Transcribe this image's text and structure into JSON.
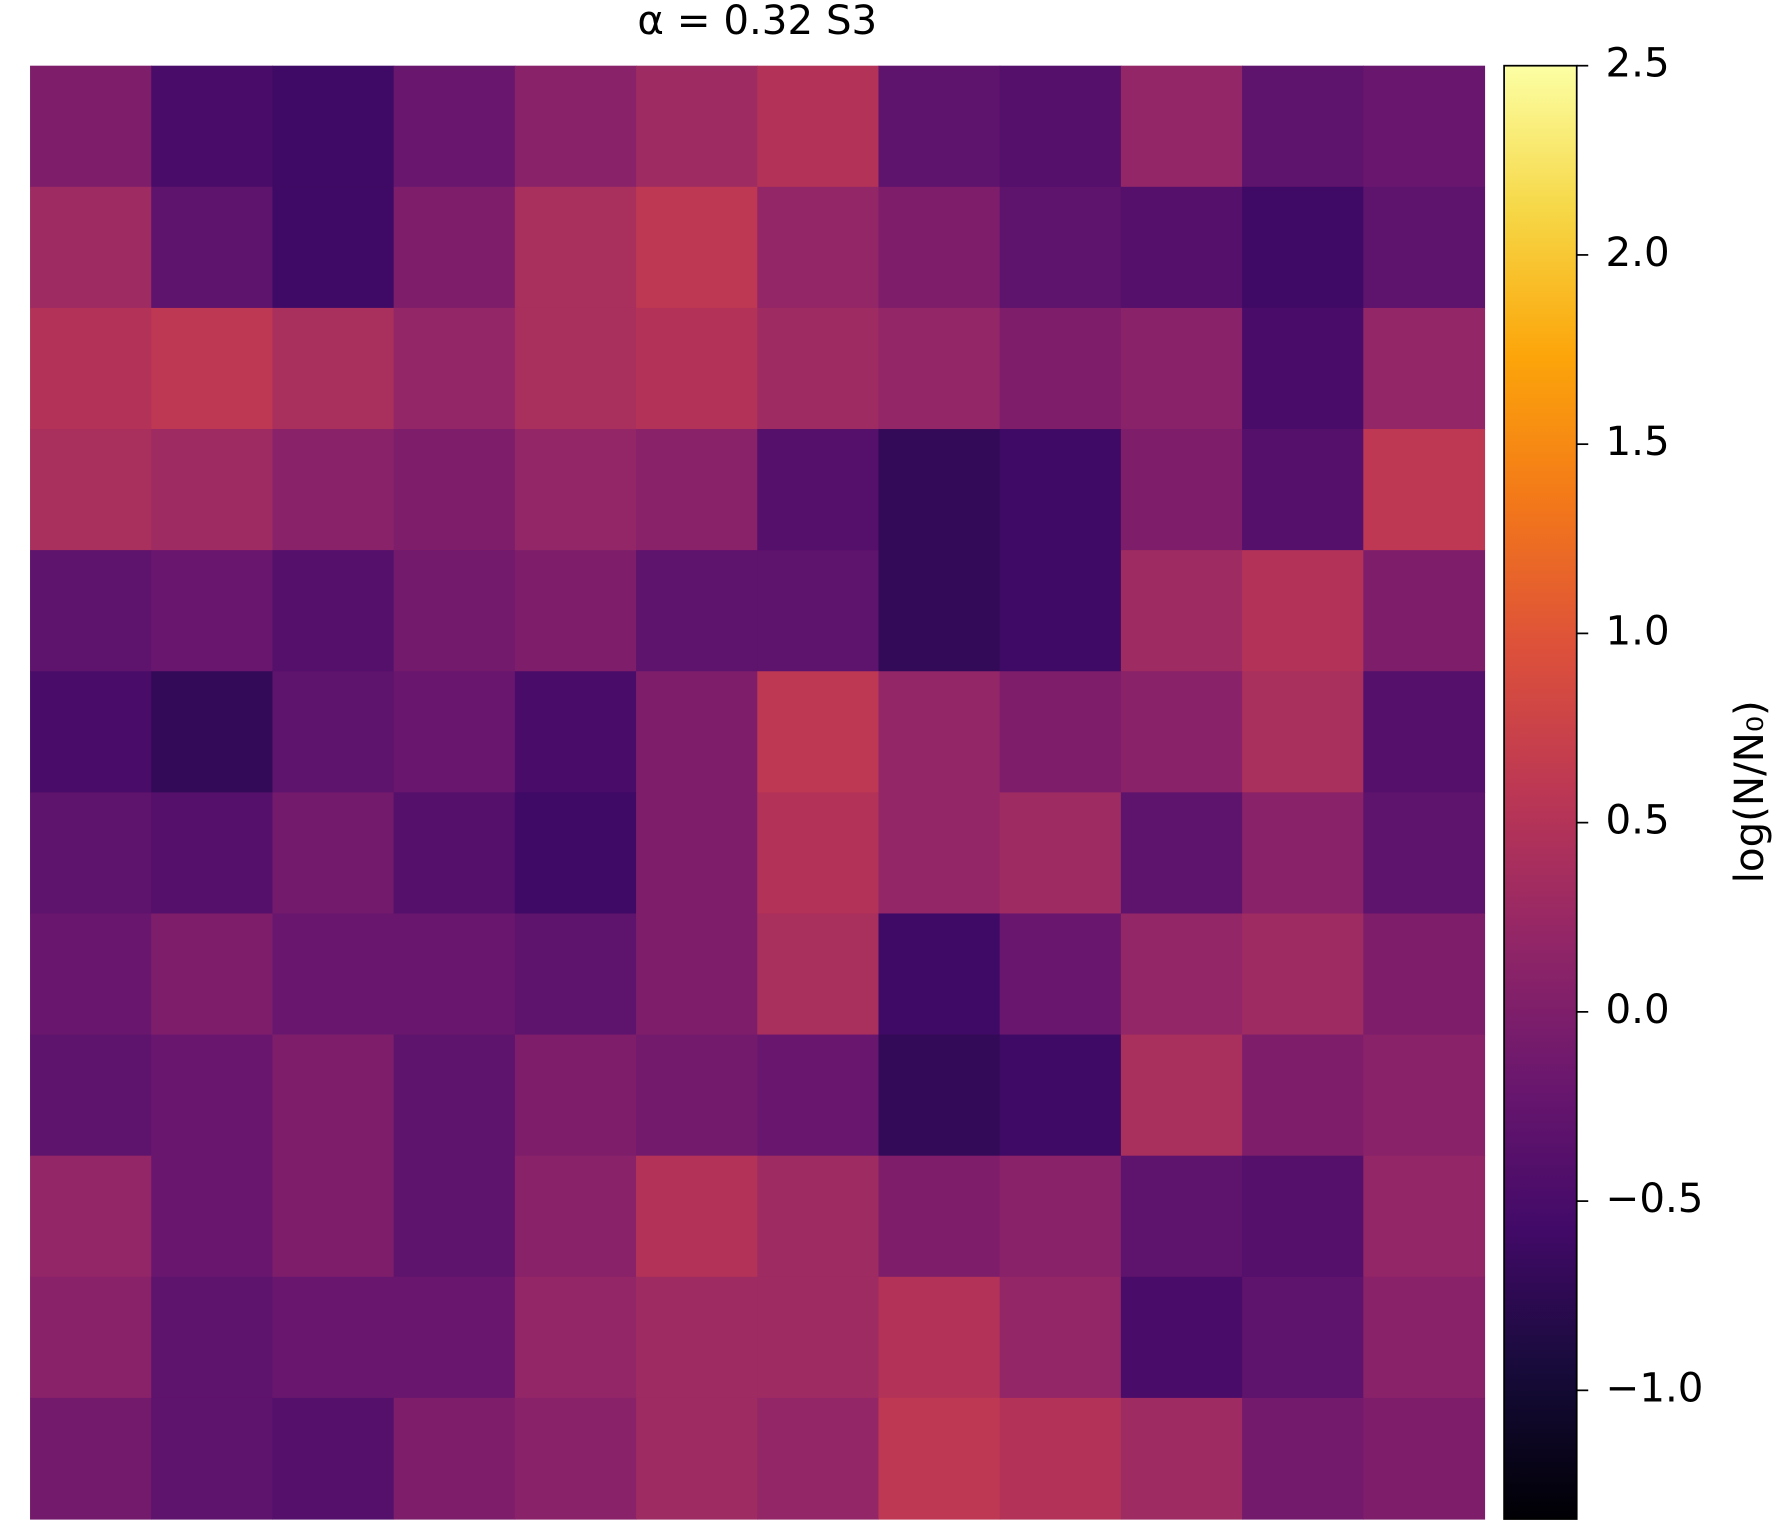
{
  "chart_data": {
    "type": "heatmap",
    "title": "α = 0.32 S3",
    "colorbar_label": "log(N/N₀)",
    "colormap": "inferno",
    "clim": [
      -1.34,
      2.5
    ],
    "cticks": [
      {
        "value": -1.0,
        "label": "−1.0"
      },
      {
        "value": -0.5,
        "label": "−0.5"
      },
      {
        "value": 0.0,
        "label": "0.0"
      },
      {
        "value": 0.5,
        "label": "0.5"
      },
      {
        "value": 1.0,
        "label": "1.0"
      },
      {
        "value": 1.5,
        "label": "1.5"
      },
      {
        "value": 2.0,
        "label": "2.0"
      },
      {
        "value": 2.5,
        "label": "2.5"
      }
    ],
    "z": [
      [
        0.0,
        -0.5,
        -0.6,
        -0.2,
        0.1,
        0.3,
        0.5,
        -0.3,
        -0.4,
        0.2,
        -0.3,
        -0.2
      ],
      [
        0.3,
        -0.3,
        -0.6,
        0.0,
        0.4,
        0.6,
        0.2,
        0.0,
        -0.3,
        -0.4,
        -0.6,
        -0.3
      ],
      [
        0.5,
        0.6,
        0.4,
        0.2,
        0.4,
        0.5,
        0.3,
        0.2,
        0.0,
        0.1,
        -0.5,
        0.2
      ],
      [
        0.4,
        0.3,
        0.1,
        0.0,
        0.2,
        0.1,
        -0.4,
        -0.7,
        -0.6,
        0.0,
        -0.4,
        0.6
      ],
      [
        -0.3,
        -0.2,
        -0.4,
        -0.1,
        0.0,
        -0.3,
        -0.3,
        -0.7,
        -0.6,
        0.3,
        0.5,
        0.0
      ],
      [
        -0.5,
        -0.7,
        -0.3,
        -0.2,
        -0.5,
        0.0,
        0.6,
        0.2,
        0.0,
        0.1,
        0.4,
        -0.4
      ],
      [
        -0.3,
        -0.4,
        -0.1,
        -0.4,
        -0.6,
        0.0,
        0.5,
        0.2,
        0.3,
        -0.3,
        0.1,
        -0.3
      ],
      [
        -0.2,
        0.0,
        -0.2,
        -0.2,
        -0.3,
        0.0,
        0.4,
        -0.6,
        -0.2,
        0.2,
        0.3,
        0.0
      ],
      [
        -0.3,
        -0.2,
        0.0,
        -0.3,
        0.0,
        -0.1,
        -0.2,
        -0.7,
        -0.6,
        0.4,
        0.0,
        0.1
      ],
      [
        0.2,
        -0.2,
        0.0,
        -0.3,
        0.1,
        0.5,
        0.3,
        0.0,
        0.1,
        -0.3,
        -0.4,
        0.2
      ],
      [
        0.1,
        -0.3,
        -0.2,
        -0.2,
        0.2,
        0.3,
        0.3,
        0.5,
        0.2,
        -0.5,
        -0.3,
        0.1
      ],
      [
        -0.1,
        -0.3,
        -0.4,
        0.0,
        0.1,
        0.3,
        0.2,
        0.6,
        0.5,
        0.3,
        -0.1,
        0.0
      ]
    ]
  }
}
